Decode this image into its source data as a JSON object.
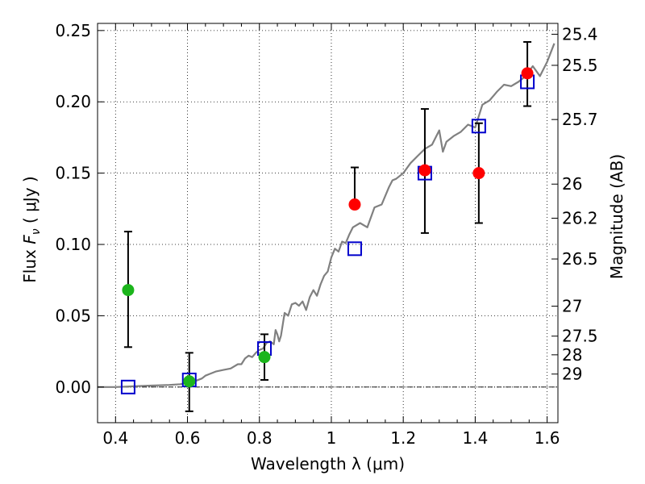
{
  "chart_data": {
    "type": "scatter",
    "xlabel": "Wavelength  λ (μm)",
    "ylabel_left_prefix": "Flux  ",
    "ylabel_left_symbol": "F",
    "ylabel_left_sub": "ν",
    "ylabel_left_suffix": "  ( μJy )",
    "ylabel_right": "Magnitude (AB)",
    "xlim": [
      0.35,
      1.63
    ],
    "ylim": [
      -0.025,
      0.255
    ],
    "x_ticks": [
      0.4,
      0.6,
      0.8,
      1.0,
      1.2,
      1.4,
      1.6
    ],
    "x_tick_labels": [
      "0.4",
      "0.6",
      "0.8",
      "1",
      "1.2",
      "1.4",
      "1.6"
    ],
    "y_ticks": [
      0.0,
      0.05,
      0.1,
      0.15,
      0.2,
      0.25
    ],
    "y_tick_labels": [
      "0.00",
      "0.05",
      "0.10",
      "0.15",
      "0.20",
      "0.25"
    ],
    "right_ticks": [
      {
        "label": "25.4",
        "flux": 0.2474
      },
      {
        "label": "25.5",
        "flux": 0.2256
      },
      {
        "label": "25.7",
        "flux": 0.1876
      },
      {
        "label": "26",
        "flux": 0.1423
      },
      {
        "label": "26.2",
        "flux": 0.1184
      },
      {
        "label": "26.5",
        "flux": 0.0898
      },
      {
        "label": "27",
        "flux": 0.0567
      },
      {
        "label": "27.5",
        "flux": 0.0357
      },
      {
        "label": "28",
        "flux": 0.0226
      },
      {
        "label": "29",
        "flux": 0.0091
      }
    ],
    "grid": true,
    "colors": {
      "green": "#1cb51c",
      "red": "#ff0000",
      "blue": "#0000cc",
      "model": "#808080",
      "errorbar": "#000000"
    },
    "series": [
      {
        "name": "detections-green",
        "marker": "circle",
        "color": "#1cb51c",
        "points": [
          {
            "x": 0.435,
            "y": 0.068,
            "err_low": 0.04,
            "err_high": 0.041
          },
          {
            "x": 0.605,
            "y": 0.004,
            "err_low": 0.021,
            "err_high": 0.02
          },
          {
            "x": 0.814,
            "y": 0.021,
            "err_low": 0.016,
            "err_high": 0.016
          }
        ]
      },
      {
        "name": "detections-red",
        "marker": "circle",
        "color": "#ff0000",
        "points": [
          {
            "x": 1.065,
            "y": 0.128,
            "err_low": 0.0,
            "err_high": 0.026
          },
          {
            "x": 1.26,
            "y": 0.152,
            "err_low": 0.044,
            "err_high": 0.043
          },
          {
            "x": 1.41,
            "y": 0.15,
            "err_low": 0.035,
            "err_high": 0.035
          },
          {
            "x": 1.545,
            "y": 0.22,
            "err_low": 0.023,
            "err_high": 0.022
          }
        ]
      },
      {
        "name": "model-photometry",
        "marker": "square",
        "color": "#0000cc",
        "points": [
          {
            "x": 0.435,
            "y": 0.0
          },
          {
            "x": 0.605,
            "y": 0.005
          },
          {
            "x": 0.814,
            "y": 0.027
          },
          {
            "x": 1.065,
            "y": 0.097
          },
          {
            "x": 1.26,
            "y": 0.15
          },
          {
            "x": 1.41,
            "y": 0.183
          },
          {
            "x": 1.545,
            "y": 0.214
          }
        ]
      },
      {
        "name": "model-spectrum",
        "type": "line",
        "color": "#808080",
        "x": [
          0.35,
          0.4,
          0.45,
          0.5,
          0.55,
          0.58,
          0.6,
          0.62,
          0.64,
          0.65,
          0.66,
          0.68,
          0.7,
          0.72,
          0.74,
          0.75,
          0.76,
          0.77,
          0.78,
          0.79,
          0.8,
          0.81,
          0.82,
          0.83,
          0.84,
          0.845,
          0.85,
          0.855,
          0.86,
          0.87,
          0.88,
          0.89,
          0.9,
          0.91,
          0.92,
          0.93,
          0.94,
          0.95,
          0.96,
          0.97,
          0.98,
          0.99,
          1.0,
          1.01,
          1.02,
          1.03,
          1.04,
          1.05,
          1.06,
          1.08,
          1.1,
          1.12,
          1.14,
          1.16,
          1.17,
          1.18,
          1.19,
          1.2,
          1.22,
          1.24,
          1.26,
          1.28,
          1.3,
          1.31,
          1.32,
          1.34,
          1.36,
          1.38,
          1.4,
          1.42,
          1.44,
          1.46,
          1.48,
          1.5,
          1.52,
          1.54,
          1.56,
          1.58,
          1.6,
          1.62
        ],
        "y": [
          0.0,
          0.0,
          0.0005,
          0.001,
          0.0015,
          0.002,
          0.003,
          0.004,
          0.006,
          0.008,
          0.009,
          0.011,
          0.012,
          0.013,
          0.016,
          0.016,
          0.02,
          0.022,
          0.021,
          0.024,
          0.026,
          0.027,
          0.031,
          0.032,
          0.03,
          0.04,
          0.037,
          0.032,
          0.036,
          0.052,
          0.05,
          0.058,
          0.059,
          0.057,
          0.06,
          0.054,
          0.063,
          0.068,
          0.064,
          0.072,
          0.078,
          0.081,
          0.091,
          0.097,
          0.095,
          0.102,
          0.101,
          0.107,
          0.112,
          0.115,
          0.112,
          0.126,
          0.128,
          0.14,
          0.145,
          0.146,
          0.148,
          0.15,
          0.157,
          0.162,
          0.167,
          0.17,
          0.18,
          0.165,
          0.172,
          0.176,
          0.179,
          0.184,
          0.182,
          0.198,
          0.201,
          0.207,
          0.212,
          0.211,
          0.214,
          0.218,
          0.225,
          0.218,
          0.228,
          0.241
        ]
      }
    ]
  }
}
